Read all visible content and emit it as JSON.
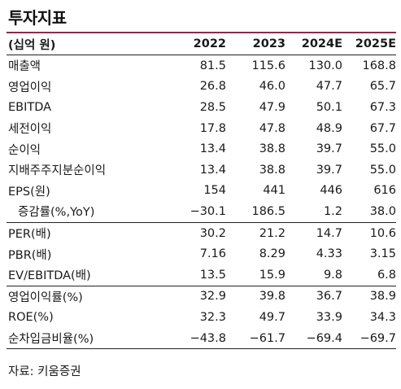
{
  "title": "투자지표",
  "header": {
    "label": "(십억 원)",
    "years": [
      "2022",
      "2023",
      "2024E",
      "2025E"
    ]
  },
  "rows": [
    {
      "label": "매출액",
      "values": [
        "81.5",
        "115.6",
        "130.0",
        "168.8"
      ]
    },
    {
      "label": "영업이익",
      "values": [
        "26.8",
        "46.0",
        "47.7",
        "65.7"
      ]
    },
    {
      "label": "EBITDA",
      "values": [
        "28.5",
        "47.9",
        "50.1",
        "67.3"
      ]
    },
    {
      "label": "세전이익",
      "values": [
        "17.8",
        "47.8",
        "48.9",
        "67.7"
      ]
    },
    {
      "label": "순이익",
      "values": [
        "13.4",
        "38.8",
        "39.7",
        "55.0"
      ]
    },
    {
      "label": "지배주주지분순이익",
      "values": [
        "13.4",
        "38.8",
        "39.7",
        "55.0"
      ]
    },
    {
      "label": "EPS(원)",
      "values": [
        "154",
        "441",
        "446",
        "616"
      ]
    },
    {
      "label": "증감률(%,YoY)",
      "values": [
        "−30.1",
        "186.5",
        "1.2",
        "38.0"
      ]
    },
    {
      "label": "PER(배)",
      "values": [
        "30.2",
        "21.2",
        "14.7",
        "10.6"
      ]
    },
    {
      "label": "PBR(배)",
      "values": [
        "7.16",
        "8.29",
        "4.33",
        "3.15"
      ]
    },
    {
      "label": "EV/EBITDA(배)",
      "values": [
        "13.5",
        "15.9",
        "9.8",
        "6.8"
      ]
    },
    {
      "label": "영업이익률(%)",
      "values": [
        "32.9",
        "39.8",
        "36.7",
        "38.9"
      ]
    },
    {
      "label": "ROE(%)",
      "values": [
        "32.3",
        "49.7",
        "33.9",
        "34.3"
      ]
    },
    {
      "label": "순차입금비율(%)",
      "values": [
        "−43.8",
        "−61.7",
        "−69.4",
        "−69.7"
      ]
    }
  ],
  "source": "자료: 키움증권",
  "colors": {
    "accent_rule": "#8b2c4b"
  }
}
